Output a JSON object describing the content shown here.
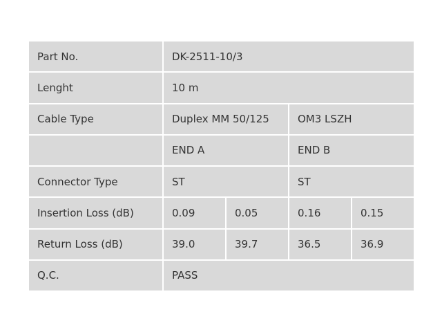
{
  "table": {
    "rows": [
      [
        "Part No.",
        "DK-2511-10/3"
      ],
      [
        "Lenght",
        "10 m"
      ],
      [
        "Cable Type",
        "Duplex MM 50/125",
        "OM3 LSZH"
      ],
      [
        "END A",
        "END B"
      ],
      [
        "Connector Type",
        "ST",
        "ST"
      ],
      [
        "Insertion Loss (dB)",
        "0.09",
        "0.05",
        "0.16",
        "0.15"
      ],
      [
        "Return Loss (dB)",
        "39.0",
        "39.7",
        "36.5",
        "36.9"
      ],
      [
        "Q.C.",
        "PASS"
      ]
    ]
  }
}
